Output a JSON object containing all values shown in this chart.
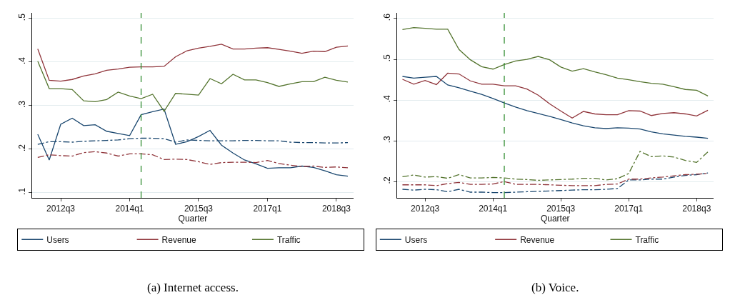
{
  "chart_data": [
    {
      "type": "line",
      "xlabel": "Quarter",
      "annotations": [
        "(a) Internet access."
      ],
      "grid": "y",
      "legend": "bottom",
      "ylim": [
        0.088,
        0.513
      ],
      "yticks": [
        {
          "value": 0.1,
          "label": ".1"
        },
        {
          "value": 0.2,
          "label": ".2"
        },
        {
          "value": 0.3,
          "label": ".3"
        },
        {
          "value": 0.4,
          "label": ".4"
        },
        {
          "value": 0.5,
          "label": ".5"
        }
      ],
      "categories": [
        null,
        null,
        "2012q3",
        null,
        null,
        null,
        null,
        null,
        "2014q1",
        null,
        null,
        null,
        null,
        null,
        "2015q3",
        null,
        null,
        null,
        null,
        null,
        "2017q1",
        null,
        null,
        null,
        null,
        null,
        "2018q3",
        null
      ],
      "series": [
        {
          "name": "Users",
          "color": "#1a476f",
          "line_style": "solid",
          "values": [
            0.234,
            0.175,
            0.257,
            0.271,
            0.254,
            0.256,
            0.241,
            0.236,
            0.231,
            0.279,
            0.286,
            0.292,
            0.211,
            0.217,
            0.229,
            0.243,
            0.209,
            0.191,
            0.175,
            0.166,
            0.156,
            0.157,
            0.157,
            0.161,
            0.158,
            0.15,
            0.141,
            0.138
          ]
        },
        {
          "name": "Revenue",
          "color": "#90353b",
          "line_style": "solid",
          "values": [
            0.43,
            0.358,
            0.356,
            0.36,
            0.368,
            0.373,
            0.381,
            0.384,
            0.388,
            0.389,
            0.389,
            0.39,
            0.412,
            0.426,
            0.432,
            0.436,
            0.441,
            0.43,
            0.43,
            0.432,
            0.433,
            0.429,
            0.425,
            0.42,
            0.425,
            0.424,
            0.434,
            0.437
          ]
        },
        {
          "name": "Traffic",
          "color": "#55752f",
          "line_style": "solid",
          "values": [
            0.402,
            0.339,
            0.339,
            0.337,
            0.311,
            0.309,
            0.314,
            0.331,
            0.322,
            0.316,
            0.326,
            0.287,
            0.328,
            0.326,
            0.324,
            0.362,
            0.35,
            0.372,
            0.359,
            0.359,
            0.353,
            0.344,
            0.35,
            0.355,
            0.355,
            0.365,
            0.358,
            0.354
          ]
        },
        {
          "color": "#1a476f",
          "line_style": "dashed",
          "values": [
            0.211,
            0.217,
            0.217,
            0.216,
            0.218,
            0.219,
            0.22,
            0.221,
            0.224,
            0.225,
            0.225,
            0.224,
            0.216,
            0.221,
            0.22,
            0.219,
            0.219,
            0.219,
            0.22,
            0.22,
            0.219,
            0.219,
            0.216,
            0.215,
            0.215,
            0.214,
            0.214,
            0.215
          ]
        },
        {
          "color": "#90353b",
          "line_style": "dashed",
          "values": [
            0.181,
            0.187,
            0.185,
            0.184,
            0.192,
            0.194,
            0.191,
            0.184,
            0.189,
            0.189,
            0.187,
            0.176,
            0.177,
            0.176,
            0.171,
            0.165,
            0.169,
            0.17,
            0.17,
            0.169,
            0.174,
            0.167,
            0.163,
            0.16,
            0.161,
            0.158,
            0.159,
            0.157
          ]
        }
      ]
    },
    {
      "type": "line",
      "xlabel": "Quarter",
      "annotations": [
        "(b) Voice."
      ],
      "grid": "y",
      "legend": "bottom",
      "ylim": [
        0.16,
        0.614
      ],
      "yticks": [
        {
          "value": 0.2,
          "label": ".2"
        },
        {
          "value": 0.3,
          "label": ".3"
        },
        {
          "value": 0.4,
          "label": ".4"
        },
        {
          "value": 0.5,
          "label": ".5"
        },
        {
          "value": 0.6,
          "label": ".6"
        }
      ],
      "categories": [
        null,
        null,
        "2012q3",
        null,
        null,
        null,
        null,
        null,
        "2014q1",
        null,
        null,
        null,
        null,
        null,
        "2015q3",
        null,
        null,
        null,
        null,
        null,
        "2017q1",
        null,
        null,
        null,
        null,
        null,
        "2018q3",
        null
      ],
      "series": [
        {
          "name": "Users",
          "color": "#1a476f",
          "line_style": "solid",
          "values": [
            0.458,
            0.454,
            0.456,
            0.458,
            0.437,
            0.43,
            0.422,
            0.414,
            0.404,
            0.393,
            0.383,
            0.374,
            0.367,
            0.36,
            0.352,
            0.344,
            0.337,
            0.332,
            0.33,
            0.332,
            0.331,
            0.329,
            0.322,
            0.317,
            0.314,
            0.311,
            0.309,
            0.306
          ]
        },
        {
          "name": "Revenue",
          "color": "#90353b",
          "line_style": "solid",
          "values": [
            0.451,
            0.439,
            0.448,
            0.438,
            0.466,
            0.464,
            0.447,
            0.439,
            0.439,
            0.435,
            0.435,
            0.427,
            0.412,
            0.391,
            0.373,
            0.356,
            0.372,
            0.366,
            0.364,
            0.364,
            0.374,
            0.373,
            0.362,
            0.367,
            0.369,
            0.366,
            0.361,
            0.375
          ]
        },
        {
          "name": "Traffic",
          "color": "#55752f",
          "line_style": "solid",
          "values": [
            0.573,
            0.578,
            0.576,
            0.574,
            0.574,
            0.524,
            0.499,
            0.482,
            0.476,
            0.487,
            0.496,
            0.5,
            0.507,
            0.499,
            0.481,
            0.471,
            0.477,
            0.469,
            0.462,
            0.454,
            0.45,
            0.445,
            0.441,
            0.439,
            0.433,
            0.426,
            0.424,
            0.41
          ]
        },
        {
          "color": "#1a476f",
          "line_style": "dashed",
          "values": [
            0.181,
            0.179,
            0.181,
            0.18,
            0.175,
            0.181,
            0.174,
            0.174,
            0.173,
            0.173,
            0.174,
            0.175,
            0.176,
            0.177,
            0.178,
            0.179,
            0.18,
            0.18,
            0.181,
            0.183,
            0.204,
            0.204,
            0.206,
            0.206,
            0.211,
            0.215,
            0.217,
            0.221
          ]
        },
        {
          "color": "#90353b",
          "line_style": "dashed",
          "values": [
            0.192,
            0.192,
            0.192,
            0.19,
            0.195,
            0.198,
            0.193,
            0.193,
            0.194,
            0.2,
            0.193,
            0.193,
            0.193,
            0.192,
            0.191,
            0.19,
            0.19,
            0.19,
            0.193,
            0.194,
            0.206,
            0.206,
            0.209,
            0.211,
            0.214,
            0.217,
            0.218,
            0.22
          ]
        },
        {
          "color": "#55752f",
          "line_style": "dashed",
          "values": [
            0.212,
            0.216,
            0.211,
            0.212,
            0.208,
            0.217,
            0.209,
            0.209,
            0.21,
            0.209,
            0.206,
            0.205,
            0.203,
            0.204,
            0.205,
            0.206,
            0.208,
            0.208,
            0.204,
            0.207,
            0.22,
            0.274,
            0.261,
            0.263,
            0.26,
            0.252,
            0.247,
            0.273
          ]
        }
      ]
    }
  ]
}
